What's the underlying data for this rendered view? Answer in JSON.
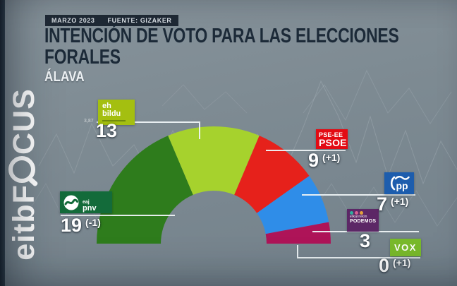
{
  "meta_bar": {
    "date": "MARZO 2023",
    "source": "FUENTE: GIZAKER"
  },
  "title": {
    "line1": "INTENCIÓN DE VOTO PARA LAS ELECCIONES",
    "line2": "FORALES",
    "region": "ÁLAVA"
  },
  "brand": {
    "part1": "eitb",
    "part2": "F",
    "part3": "CUS",
    "full": "eitbFOCUS"
  },
  "background": {
    "faint_value": "3,87"
  },
  "chart_data": {
    "type": "pie",
    "variant": "half-donut-parliament",
    "title": "Intención de voto para las elecciones forales — Álava (seat projection)",
    "total_seats": 51,
    "legend_position": "callout-labels",
    "parties": [
      {
        "name": "EAJ-PNV",
        "badge": {
          "line1": "eaj",
          "line2": "pnv"
        },
        "seats": 19,
        "change": "(-1)",
        "color": "#2e7c1c",
        "badge_color": "#136b3a"
      },
      {
        "name": "EH Bildu",
        "badge": {
          "line1": "eh",
          "line2": "bildu"
        },
        "seats": 13,
        "change": "",
        "color": "#a6d22d",
        "badge_color": "#a4bf10"
      },
      {
        "name": "PSE-EE PSOE",
        "badge": {
          "line1": "PSE-EE",
          "line2": "PSOE"
        },
        "seats": 9,
        "change": "(+1)",
        "color": "#e6211b",
        "badge_color": "#e30b13"
      },
      {
        "name": "PP",
        "badge": {
          "line1": "pp"
        },
        "seats": 7,
        "change": "(+1)",
        "color": "#2f8de8",
        "badge_color": "#1d5dad"
      },
      {
        "name": "Elkarrekin Podemos",
        "badge": {
          "line1": "elkarrekin",
          "line2": "PODEMOS",
          "dots": [
            "#2fae9e",
            "#d75f93",
            "#e2a23b"
          ]
        },
        "seats": 3,
        "change": "",
        "color": "#ae1458",
        "badge_color": "#5c2766"
      },
      {
        "name": "VOX",
        "badge": {
          "line1": "VOX"
        },
        "seats": 0,
        "change": "(+1)",
        "color": "#79ba2b",
        "badge_color": "#79ba2b"
      }
    ]
  }
}
